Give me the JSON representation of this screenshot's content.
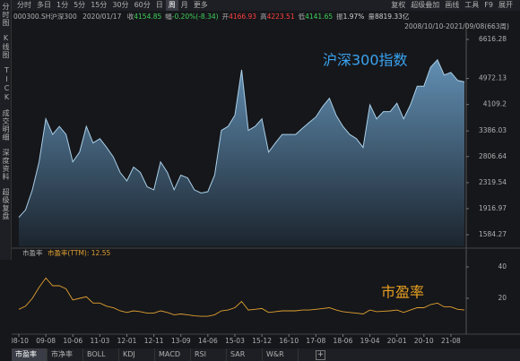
{
  "toolbar": {
    "left": [
      "分时",
      "多日",
      "1分",
      "5分",
      "15分",
      "30分",
      "60分",
      "日",
      "周",
      "月",
      "更多"
    ],
    "active": 8,
    "right": [
      "复权",
      "超级叠加",
      "画线",
      "工具",
      "F9",
      "展开"
    ]
  },
  "quote": {
    "symbol": "000300.SH沪深300",
    "date": "2020/01/17",
    "items": [
      {
        "label": "收",
        "value": "4154.85",
        "color": "#3fcf5a"
      },
      {
        "label": "幅",
        "value": "-0.20%(-8.34)",
        "color": "#3fcf5a"
      },
      {
        "label": "开",
        "value": "4166.93",
        "color": "#ff4040"
      },
      {
        "label": "高",
        "value": "4223.51",
        "color": "#ff4040"
      },
      {
        "label": "低",
        "value": "4141.65",
        "color": "#3fcf5a"
      },
      {
        "label": "振",
        "value": "1.97%",
        "color": "#d0d0d0"
      },
      {
        "label": "量",
        "value": "8819.33亿",
        "color": "#d0d0d0"
      }
    ]
  },
  "sidebar": [
    "分时图",
    "K线图",
    "TICK",
    "成交明细",
    "深度资料",
    "超级复盘"
  ],
  "tabs": [
    "市盈率",
    "市净率",
    "BOLL",
    "KDJ",
    "MACD",
    "RSI",
    "SAR",
    "W&R"
  ],
  "active_tab": 0,
  "chart_data": [
    {
      "type": "area",
      "subtitle": "2008/10/10-2021/09/08(663周)",
      "annotation": "沪深300指数",
      "log": true,
      "color": "#a9cfe8",
      "ylim": [
        1455,
        7020
      ],
      "yticks": [
        6616.28,
        4972.13,
        4109.2,
        3386.03,
        2806.64,
        2319.54,
        1916.97,
        1584.27
      ],
      "values": [
        1800,
        1900,
        2200,
        2700,
        3700,
        3300,
        3500,
        3300,
        2700,
        2900,
        3500,
        3100,
        3200,
        3000,
        2800,
        2500,
        2350,
        2600,
        2500,
        2250,
        2200,
        2700,
        2500,
        2200,
        2450,
        2400,
        2200,
        2150,
        2170,
        2450,
        3400,
        3500,
        3800,
        5300,
        3400,
        3500,
        3700,
        2900,
        3100,
        3300,
        3300,
        3300,
        3450,
        3600,
        3750,
        4050,
        4300,
        3800,
        3500,
        3300,
        3200,
        3000,
        4100,
        3700,
        3900,
        3900,
        4150,
        3700,
        4100,
        4700,
        4700,
        5400,
        5700,
        5100,
        5200,
        4900,
        4850
      ]
    },
    {
      "type": "line",
      "title": "市盈率",
      "subtitle": "市盈率(TTM): 12.55",
      "annotation": "市盈率",
      "color": "#e0a030",
      "ylim": [
        0,
        44
      ],
      "yticks": [
        40,
        20
      ],
      "categories": [
        "08-10",
        null,
        null,
        null,
        "09-08",
        null,
        null,
        null,
        "10-06",
        null,
        null,
        null,
        "11-03",
        null,
        null,
        null,
        "12-01",
        null,
        null,
        null,
        "12-11",
        null,
        null,
        null,
        "13-09",
        null,
        null,
        null,
        "14-06",
        null,
        null,
        null,
        "15-03",
        null,
        null,
        null,
        "15-12",
        null,
        null,
        null,
        "16-10",
        null,
        null,
        null,
        "17-08",
        null,
        null,
        null,
        "18-06",
        null,
        null,
        null,
        "19-04",
        null,
        null,
        null,
        "20-01",
        null,
        null,
        null,
        "20-10",
        null,
        null,
        null,
        "21-08",
        null,
        null
      ],
      "values": [
        13,
        15,
        20,
        27,
        33,
        28,
        28,
        26,
        19,
        20,
        21,
        17,
        17,
        15,
        14,
        12,
        11,
        12,
        11.5,
        10.5,
        10.5,
        12,
        11,
        9.5,
        10,
        9.5,
        8.8,
        8.5,
        8.5,
        9.5,
        12,
        12.5,
        14,
        18,
        12.5,
        13,
        13.5,
        11,
        11.5,
        12,
        12,
        12,
        12.5,
        12.5,
        13,
        13.5,
        14,
        12.5,
        11.5,
        11,
        10.5,
        10,
        12.5,
        11.5,
        11.8,
        12,
        12.5,
        11,
        12.5,
        14,
        14,
        16,
        17,
        14.5,
        14.5,
        13,
        12.5
      ]
    }
  ]
}
